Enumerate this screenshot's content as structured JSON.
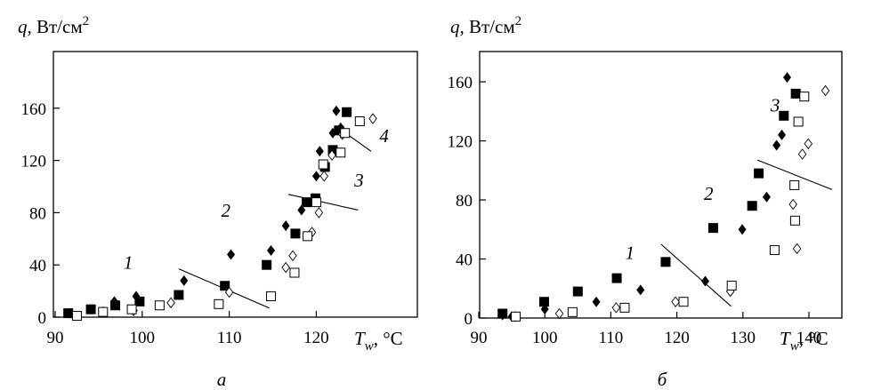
{
  "chart_data": [
    {
      "type": "scatter",
      "panel_label": "а",
      "ylabel": {
        "var": "q",
        "unit": ", Вт/см",
        "sup": "2"
      },
      "xlabel": {
        "var": "T",
        "sub": "w",
        "unit": ", °С"
      },
      "xlim": [
        90,
        130
      ],
      "ylim": [
        0,
        175
      ],
      "xticks": [
        90,
        100,
        110,
        120
      ],
      "yticks": [
        0,
        40,
        80,
        120,
        160
      ],
      "series": [
        {
          "marker": "filled-diamond",
          "points": [
            [
              91.8,
              3
            ],
            [
              94.2,
              6
            ],
            [
              96.8,
              12
            ],
            [
              99.3,
              16
            ],
            [
              104.8,
              28
            ],
            [
              110.2,
              48
            ],
            [
              114.8,
              51
            ],
            [
              116.5,
              70
            ],
            [
              118.3,
              82
            ],
            [
              120,
              108
            ],
            [
              120.4,
              127
            ],
            [
              121.9,
              141
            ],
            [
              122.3,
              158
            ],
            [
              122.8,
              145
            ]
          ]
        },
        {
          "marker": "filled-square",
          "points": [
            [
              91.5,
              3
            ],
            [
              94.1,
              6
            ],
            [
              96.9,
              9
            ],
            [
              99.7,
              12
            ],
            [
              104.2,
              17
            ],
            [
              109.5,
              24
            ],
            [
              114.3,
              40
            ],
            [
              117.6,
              64
            ],
            [
              118.9,
              88
            ],
            [
              119.9,
              91
            ],
            [
              121,
              115
            ],
            [
              121.9,
              128
            ],
            [
              122.6,
              143
            ],
            [
              123.5,
              157
            ]
          ]
        },
        {
          "marker": "open-diamond",
          "points": [
            [
              95.5,
              4
            ],
            [
              99,
              5
            ],
            [
              103.3,
              11
            ],
            [
              110,
              19
            ],
            [
              116.5,
              38
            ],
            [
              117.3,
              47
            ],
            [
              119.5,
              65
            ],
            [
              120.3,
              80
            ],
            [
              120.9,
              108
            ],
            [
              121.8,
              124
            ],
            [
              123,
              140
            ],
            [
              126.5,
              152
            ]
          ]
        },
        {
          "marker": "open-square",
          "points": [
            [
              92.5,
              1
            ],
            [
              95.5,
              4
            ],
            [
              98.8,
              6
            ],
            [
              102,
              9
            ],
            [
              108.8,
              10
            ],
            [
              114.8,
              16
            ],
            [
              117.5,
              34
            ],
            [
              119,
              62
            ],
            [
              120,
              88
            ],
            [
              120.8,
              117
            ],
            [
              122.8,
              126
            ],
            [
              123.3,
              141
            ],
            [
              125,
              150
            ]
          ]
        }
      ],
      "boundaries": [
        [
          [
            104.2,
            37
          ],
          [
            114.6,
            7
          ]
        ],
        [
          [
            116.8,
            94
          ],
          [
            124.8,
            82
          ]
        ],
        [
          [
            122.3,
            146
          ],
          [
            126.3,
            127
          ]
        ]
      ],
      "region_labels": [
        {
          "text": "1",
          "x": 98.4,
          "y": 37
        },
        {
          "text": "2",
          "x": 109.6,
          "y": 77
        },
        {
          "text": "3",
          "x": 124.9,
          "y": 100
        },
        {
          "text": "4",
          "x": 127.8,
          "y": 134
        }
      ]
    },
    {
      "type": "scatter",
      "panel_label": "б",
      "ylabel": {
        "var": "q",
        "unit": ", Вт/см",
        "sup": "2"
      },
      "xlabel": {
        "var": "T",
        "sub": "w",
        "unit": ", °С"
      },
      "xlim": [
        90,
        145
      ],
      "ylim": [
        0,
        175
      ],
      "xticks": [
        90,
        100,
        110,
        120,
        130,
        140
      ],
      "yticks": [
        0,
        40,
        80,
        120,
        160
      ],
      "series": [
        {
          "marker": "filled-diamond",
          "points": [
            [
              93.6,
              2
            ],
            [
              95,
              1
            ],
            [
              100,
              6
            ],
            [
              107.8,
              11
            ],
            [
              114.5,
              19
            ],
            [
              124.3,
              25
            ],
            [
              129.9,
              60
            ],
            [
              133.6,
              82
            ],
            [
              135.1,
              117
            ],
            [
              135.9,
              124
            ],
            [
              136.7,
              163
            ]
          ]
        },
        {
          "marker": "filled-square",
          "points": [
            [
              93.6,
              3
            ],
            [
              99.9,
              11
            ],
            [
              105,
              18
            ],
            [
              110.9,
              27
            ],
            [
              118.3,
              38
            ],
            [
              125.5,
              61
            ],
            [
              131.4,
              76
            ],
            [
              132.4,
              98
            ],
            [
              136.2,
              137
            ],
            [
              138,
              152
            ]
          ]
        },
        {
          "marker": "open-diamond",
          "points": [
            [
              95.5,
              1
            ],
            [
              102.2,
              3
            ],
            [
              110.8,
              7
            ],
            [
              119.8,
              11
            ],
            [
              128.1,
              18
            ],
            [
              137.6,
              77
            ],
            [
              138.2,
              47
            ],
            [
              139,
              111
            ],
            [
              139.9,
              118
            ],
            [
              142.5,
              154
            ]
          ]
        },
        {
          "marker": "open-square",
          "points": [
            [
              95.6,
              1
            ],
            [
              104.2,
              4
            ],
            [
              112.1,
              7
            ],
            [
              121,
              11
            ],
            [
              128.3,
              22
            ],
            [
              134.8,
              46
            ],
            [
              137.8,
              90
            ],
            [
              137.9,
              66
            ],
            [
              138.4,
              133
            ],
            [
              139.3,
              150
            ]
          ]
        }
      ],
      "boundaries": [
        [
          [
            117.6,
            50
          ],
          [
            128.2,
            8
          ]
        ],
        [
          [
            132.2,
            107
          ],
          [
            143.5,
            87
          ]
        ]
      ],
      "region_labels": [
        {
          "text": "1",
          "x": 112.9,
          "y": 40
        },
        {
          "text": "2",
          "x": 124.8,
          "y": 80
        },
        {
          "text": "3",
          "x": 134.9,
          "y": 140
        }
      ]
    }
  ]
}
